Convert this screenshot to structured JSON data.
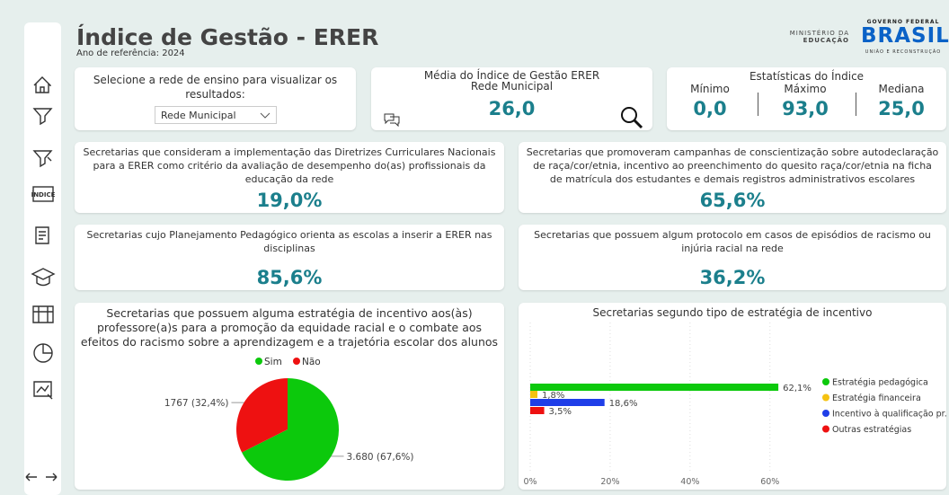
{
  "header": {
    "title": "Índice de Gestão - ERER",
    "subtitle": "Ano de referência: 2024",
    "logo": {
      "ministry": "MINISTÉRIO DA",
      "ministry_name": "EDUCAÇÃO",
      "government": "GOVERNO FEDERAL",
      "country": "BRASIL",
      "tagline": "UNIÃO E RECONSTRUÇÃO"
    }
  },
  "filter": {
    "label": "Selecione a rede de ensino para visualizar os resultados:",
    "selected": "Rede Municipal"
  },
  "media": {
    "title": "Média do Índice de Gestão ERER",
    "subtitle": "Rede Municipal",
    "value": "26,0"
  },
  "stats": {
    "title": "Estatísticas do Índice",
    "items": [
      {
        "label": "Mínimo",
        "value": "0,0"
      },
      {
        "label": "Máximo",
        "value": "93,0"
      },
      {
        "label": "Mediana",
        "value": "25,0"
      }
    ]
  },
  "cards": [
    {
      "text": "Secretarias que consideram a implementação das Diretrizes Curriculares Nacionais para a ERER como critério da avaliação de desempenho do(as) profissionais da educação da rede",
      "value": "19,0%"
    },
    {
      "text": "Secretarias que promoveram campanhas de conscientização sobre autodeclaração de raça/cor/etnia, incentivo ao preenchimento do quesito raça/cor/etnia na ficha de matrícula dos estudantes e demais registros administrativos escolares",
      "value": "65,6%"
    },
    {
      "text": "Secretarias cujo Planejamento Pedagógico orienta as escolas a inserir a ERER nas disciplinas",
      "value": "85,6%"
    },
    {
      "text": "Secretarias que possuem algum protocolo em casos de episódios de racismo ou injúria racial na rede",
      "value": "36,2%"
    }
  ],
  "chart_data": [
    {
      "type": "pie",
      "title": "Secretarias que possuem alguma estratégia de incentivo aos(às) professore(a)s para a promoção da equidade racial e o combate aos efeitos do racismo sobre a aprendizagem e a trajetória escolar dos alunos",
      "categories": [
        "Sim",
        "Não"
      ],
      "values": [
        3680,
        1767
      ],
      "value_labels": [
        "3.680 (67,6%)",
        "1767 (32,4%)"
      ],
      "colors": [
        "#0cc90c",
        "#ee1111"
      ],
      "legend": "top"
    },
    {
      "type": "hbar",
      "title": "Secretarias segundo tipo de estratégia de incentivo",
      "categories": [
        "Estratégia pedagógica",
        "Estratégia financeira",
        "Incentivo à qualificação pr...",
        "Outras estratégias"
      ],
      "values": [
        62.1,
        1.8,
        18.6,
        3.5
      ],
      "value_labels": [
        "62,1%",
        "1,8%",
        "18,6%",
        "3,5%"
      ],
      "colors": [
        "#0cc90c",
        "#f5c211",
        "#1f3ee8",
        "#ee1111"
      ],
      "xlim": [
        0,
        65
      ],
      "xticks": [
        {
          "value": 0,
          "label": "0%"
        },
        {
          "value": 20,
          "label": "20%"
        },
        {
          "value": 40,
          "label": "40%"
        },
        {
          "value": 60,
          "label": "60%"
        }
      ],
      "grid": true,
      "legend": "right"
    }
  ]
}
